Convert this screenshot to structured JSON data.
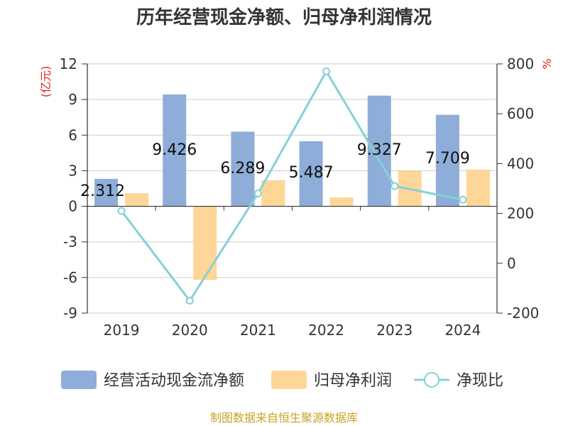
{
  "chart_data": {
    "type": "bar+line",
    "title": "历年经营现金净额、归母净利润情况",
    "categories": [
      "2019",
      "2020",
      "2021",
      "2022",
      "2023",
      "2024"
    ],
    "series": [
      {
        "name": "经营活动现金流净额",
        "type": "bar",
        "axis": "left",
        "color": "#8eadd8",
        "values": [
          2.312,
          9.426,
          6.289,
          5.487,
          9.327,
          7.709
        ]
      },
      {
        "name": "归母净利润",
        "type": "bar",
        "axis": "left",
        "color": "#fdd698",
        "values": [
          1.1,
          -6.2,
          2.2,
          0.75,
          3.0,
          3.1
        ]
      },
      {
        "name": "净现比",
        "type": "line",
        "axis": "right",
        "color": "#86d0d8",
        "values": [
          210,
          -150,
          280,
          770,
          310,
          255
        ]
      }
    ],
    "data_labels": [
      "2.312",
      "9.426",
      "6.289",
      "5.487",
      "9.327",
      "7.709"
    ],
    "left_axis": {
      "unit": "(亿元)",
      "min": -9,
      "max": 12,
      "ticks": [
        12,
        9,
        6,
        3,
        0,
        -3,
        -6,
        -9
      ]
    },
    "right_axis": {
      "unit": "%",
      "min": -200,
      "max": 800,
      "ticks": [
        800,
        600,
        400,
        200,
        0,
        -200
      ]
    },
    "legend_position": "bottom",
    "grid": true
  },
  "source_text": "制图数据来自恒生聚源数据库"
}
